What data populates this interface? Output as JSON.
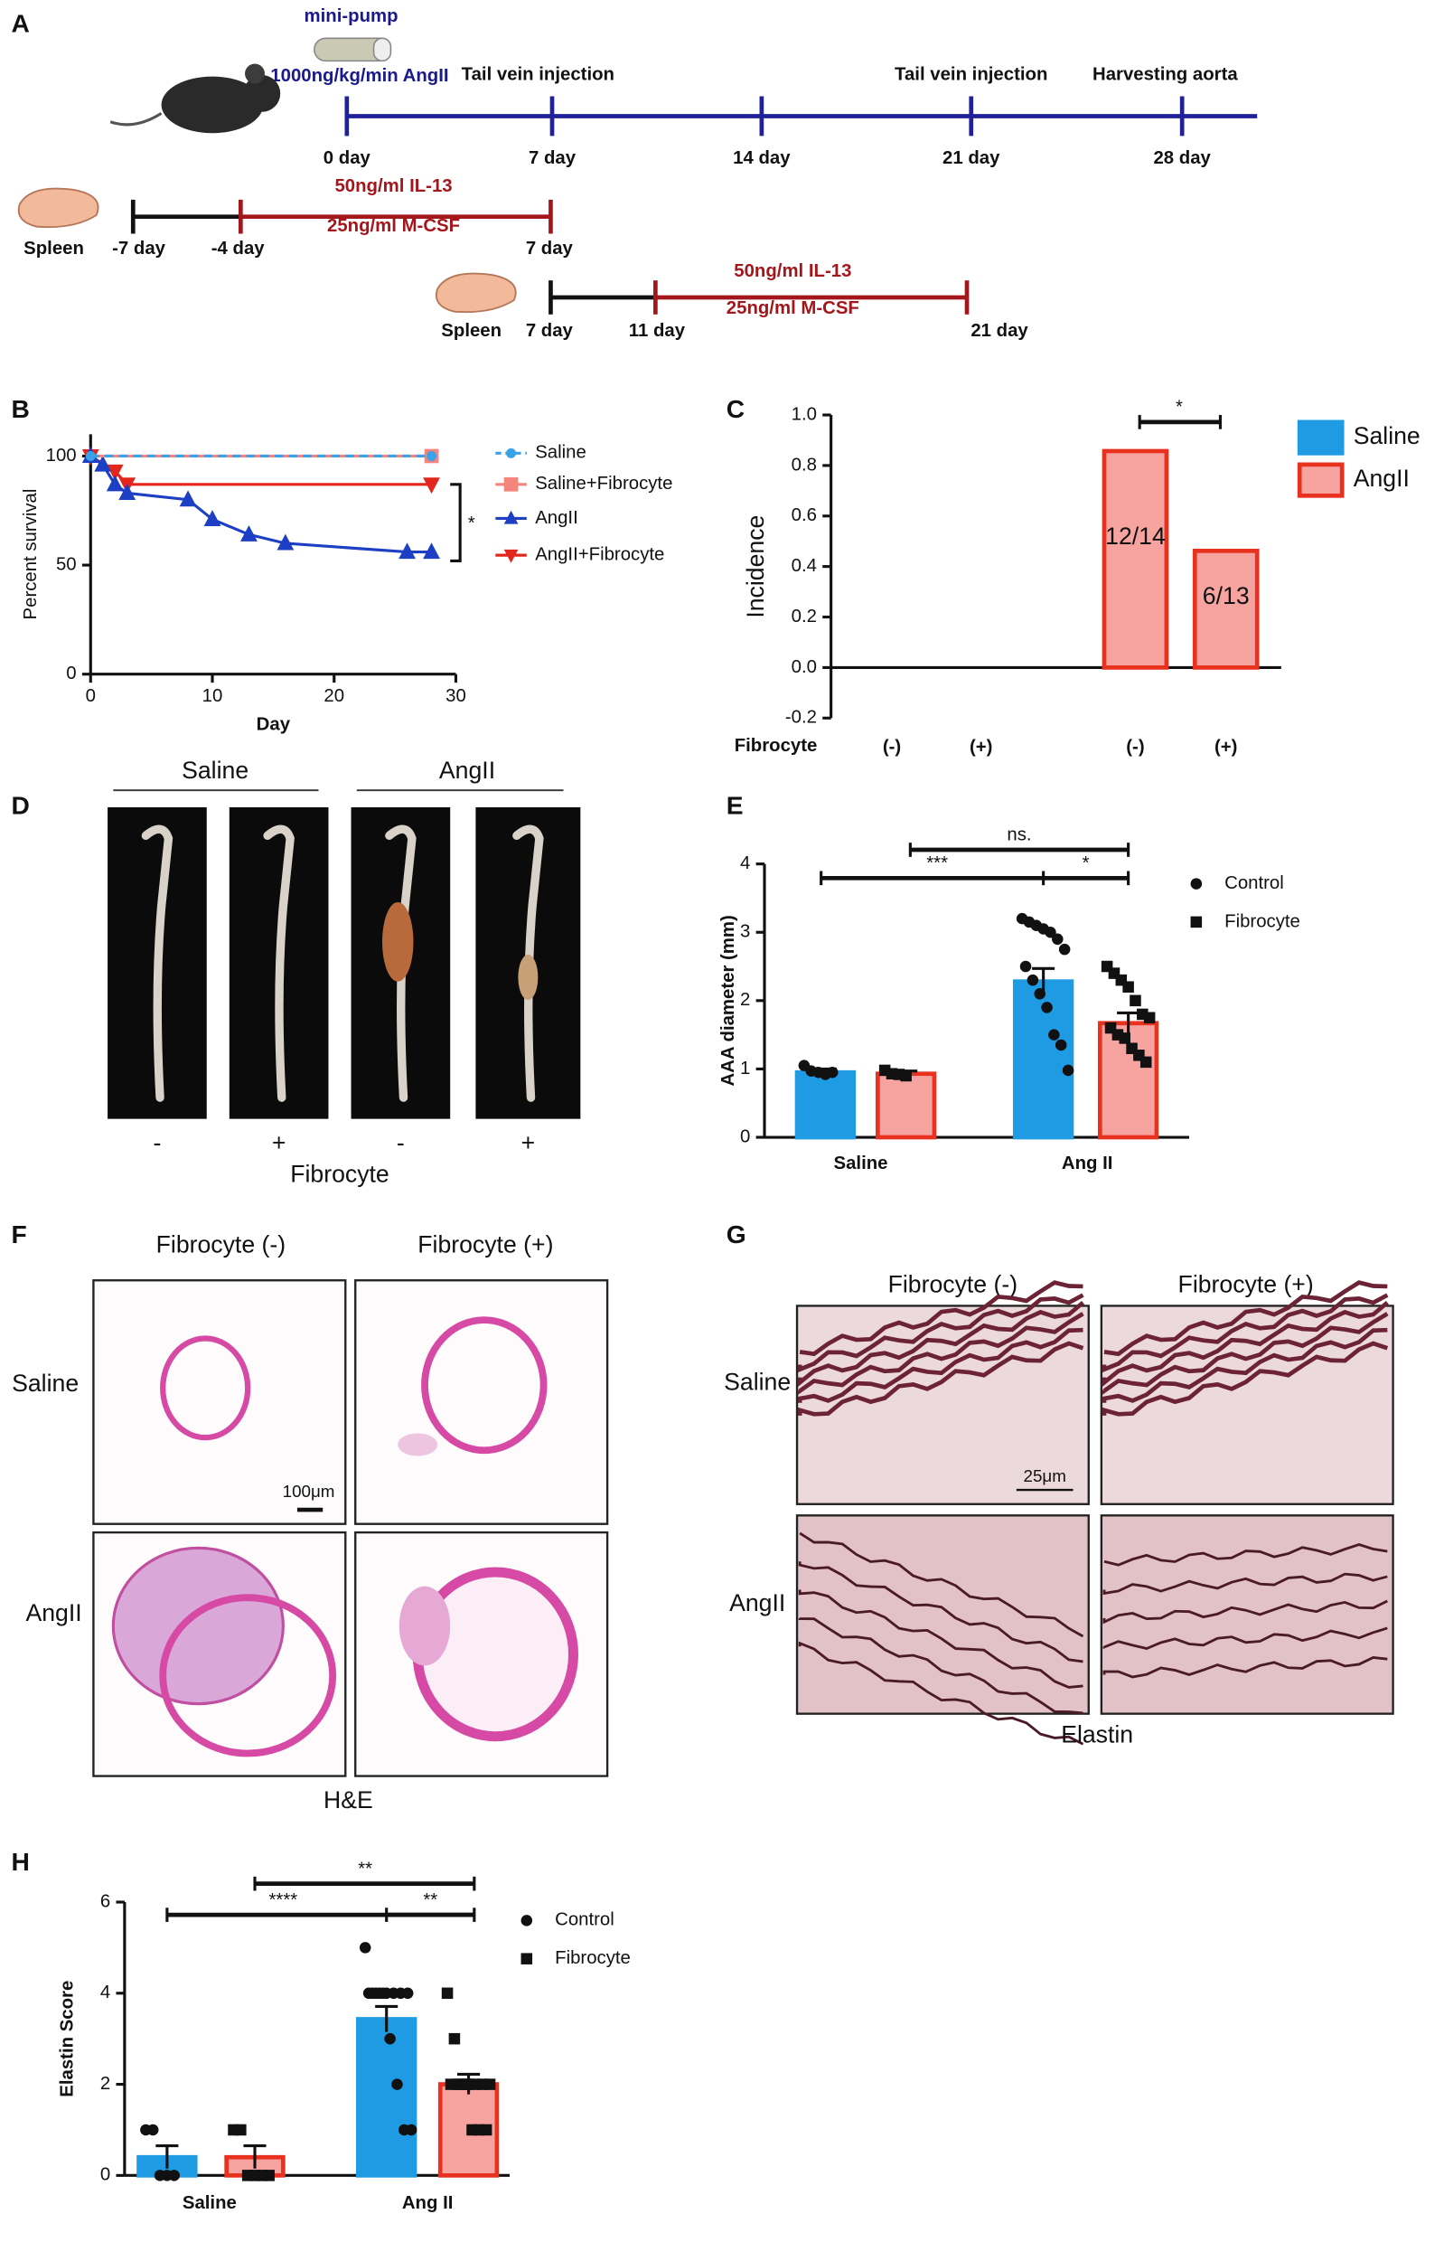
{
  "panel_labels": [
    "A",
    "B",
    "C",
    "D",
    "E",
    "F",
    "G",
    "H"
  ],
  "timeline": {
    "pump": "mini-pump",
    "dose": "1000ng/kg/min AngII",
    "events": [
      "Tail vein injection",
      "Tail vein injection",
      "Harvesting aorta"
    ],
    "days": [
      "0 day",
      "7 day",
      "14 day",
      "21 day",
      "28 day"
    ],
    "cultures": [
      {
        "organ": "Spleen",
        "days": [
          "-7 day",
          "-4 day",
          "7 day"
        ],
        "treatments": [
          "50ng/ml IL-13",
          "25ng/ml M-CSF"
        ]
      },
      {
        "organ": "Spleen",
        "days": [
          "7 day",
          "11 day",
          "21 day"
        ],
        "treatments": [
          "50ng/ml IL-13",
          "25ng/ml M-CSF"
        ]
      }
    ]
  },
  "chart_data": [
    {
      "type": "line",
      "y_label": "Percent survival",
      "x_label": "Day",
      "xlim": [
        0,
        30
      ],
      "ylim": [
        0,
        110
      ],
      "xticks": [
        0,
        10,
        20,
        30
      ],
      "yticks": [
        0,
        50,
        100
      ],
      "legend": "right",
      "annotation": "*",
      "series": [
        {
          "name": "Saline",
          "color": "#39a2e8",
          "line_style": "dashed",
          "marker": "circle",
          "x": [
            0,
            28
          ],
          "values": [
            100,
            100
          ]
        },
        {
          "name": "Saline+Fibrocyte",
          "color": "#f4847c",
          "line_style": "solid",
          "marker": "square",
          "x": [
            0,
            28
          ],
          "values": [
            100,
            100
          ]
        },
        {
          "name": "AngII",
          "color": "#1d3fc4",
          "line_style": "solid",
          "marker": "triangle-up",
          "x": [
            0,
            1,
            2,
            3,
            8,
            10,
            13,
            16,
            26,
            28
          ],
          "values": [
            100,
            96,
            87,
            83,
            80,
            71,
            64,
            60,
            56,
            56
          ]
        },
        {
          "name": "AngII+Fibrocyte",
          "color": "#e3261c",
          "line_style": "solid",
          "marker": "triangle-down",
          "x": [
            0,
            2,
            3,
            28
          ],
          "values": [
            100,
            93,
            87,
            87
          ]
        }
      ]
    },
    {
      "type": "bar",
      "y_label": "Incidence",
      "x_label": "Fibrocyte",
      "categories": [
        "(-)",
        "(+)",
        "(-)",
        "(+)"
      ],
      "ylim": [
        -0.2,
        1.0
      ],
      "yticks": [
        -0.2,
        {
          "value": 0,
          "label": "0.0"
        },
        0.2,
        0.4,
        0.6,
        0.8,
        {
          "value": 1,
          "label": "1.0"
        }
      ],
      "legend": "upper right",
      "annotation": "*",
      "series": [
        {
          "name": "Saline",
          "color": "#1e9be3",
          "edge_color": "#1e9be3",
          "values": [
            0,
            0,
            null,
            null
          ]
        },
        {
          "name": "AngII",
          "color": "#f7a3a0",
          "edge_color": "#e8311f",
          "values": [
            null,
            null,
            0.857,
            0.462
          ],
          "value_labels": [
            null,
            null,
            "12/14",
            "6/13"
          ]
        }
      ]
    },
    {
      "type": "bar",
      "y_label": "AAA diameter (mm)",
      "categories": [
        "Saline",
        "Ang II"
      ],
      "ylim": [
        0,
        4
      ],
      "yticks": [
        0,
        1,
        2,
        3,
        4
      ],
      "legend": "right",
      "annotations": [
        "ns.",
        "***",
        "*"
      ],
      "series": [
        {
          "name": "Control",
          "color": "#1e9be3",
          "edge_color": "#1e9be3",
          "marker": "circle",
          "values": [
            0.95,
            2.28
          ],
          "errors": [
            0.05,
            0.19
          ],
          "points": [
            [
              1.05,
              0.97,
              0.95,
              0.92,
              0.95
            ],
            [
              3.2,
              3.15,
              3.1,
              3.05,
              3.0,
              2.9,
              2.75,
              2.5,
              2.3,
              2.1,
              1.9,
              1.5,
              1.35,
              0.98
            ]
          ]
        },
        {
          "name": "Fibrocyte",
          "color": "#f7a3a0",
          "edge_color": "#e8311f",
          "marker": "square",
          "values": [
            0.93,
            1.67
          ],
          "errors": [
            0.04,
            0.15
          ],
          "points": [
            [
              0.98,
              0.93,
              0.92,
              0.9
            ],
            [
              2.5,
              2.4,
              2.3,
              2.2,
              2.0,
              1.8,
              1.75,
              1.6,
              1.5,
              1.45,
              1.3,
              1.2,
              1.1
            ]
          ]
        }
      ]
    },
    {
      "type": "bar",
      "y_label": "Elastin Score",
      "categories": [
        "Saline",
        "Ang II"
      ],
      "ylim": [
        0,
        6
      ],
      "yticks": [
        0,
        2,
        4,
        6
      ],
      "legend": "right",
      "annotations": [
        "**",
        "****",
        "**"
      ],
      "series": [
        {
          "name": "Control",
          "color": "#1e9be3",
          "edge_color": "#1e9be3",
          "marker": "circle",
          "values": [
            0.4,
            3.43
          ],
          "errors": [
            0.25,
            0.28
          ],
          "points": [
            [
              1,
              1,
              0,
              0,
              0
            ],
            [
              5,
              4,
              4,
              4,
              4,
              4,
              4,
              4,
              4,
              4,
              3,
              2,
              1,
              1
            ]
          ]
        },
        {
          "name": "Fibrocyte",
          "color": "#f7a3a0",
          "edge_color": "#e8311f",
          "marker": "square",
          "values": [
            0.4,
            2.0
          ],
          "errors": [
            0.25,
            0.22
          ],
          "points": [
            [
              1,
              1,
              0,
              0,
              0,
              0
            ],
            [
              4,
              3,
              2,
              2,
              2,
              2,
              2,
              2,
              2,
              2,
              1,
              1,
              1
            ]
          ]
        }
      ]
    }
  ],
  "aorta_photos": {
    "groups": [
      "Saline",
      "AngII"
    ],
    "signs": [
      "-",
      "+",
      "-",
      "+"
    ],
    "axis_label": "Fibrocyte"
  },
  "he_stain": {
    "columns": [
      "Fibrocyte (-)",
      "Fibrocyte (+)"
    ],
    "rows": [
      "Saline",
      "AngII"
    ],
    "scale_bar": "100μm",
    "caption": "H&E"
  },
  "elastin_stain": {
    "columns": [
      "Fibrocyte (-)",
      "Fibrocyte (+)"
    ],
    "rows": [
      "Saline",
      "AngII"
    ],
    "scale_bar": "25μm",
    "caption": "Elastin"
  }
}
